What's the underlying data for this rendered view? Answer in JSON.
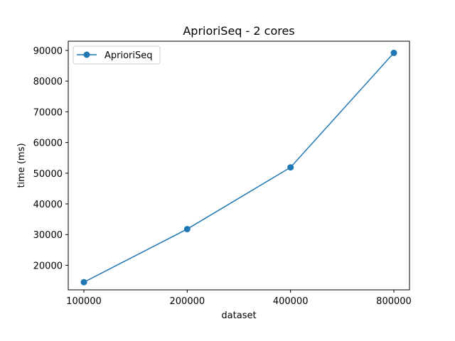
{
  "chart_data": {
    "type": "line",
    "title": "AprioriSeq - 2 cores",
    "xlabel": "dataset",
    "ylabel": "time (ms)",
    "categories": [
      "100000",
      "200000",
      "400000",
      "800000"
    ],
    "series": [
      {
        "name": "AprioriSeq",
        "values": [
          14500,
          31800,
          51900,
          89200
        ],
        "color": "#1f77b4"
      }
    ],
    "yticks": [
      20000,
      30000,
      40000,
      50000,
      60000,
      70000,
      80000,
      90000
    ],
    "ylim": [
      12000,
      93000
    ],
    "grid": false,
    "legend": "top-left"
  }
}
